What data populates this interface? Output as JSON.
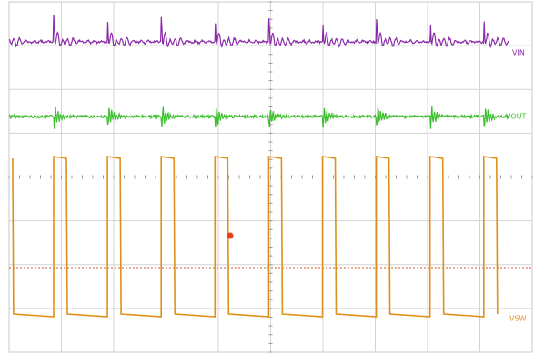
{
  "traces": [
    {
      "label": "VIN"
    },
    {
      "label": "VOUT"
    },
    {
      "label": "VSW"
    }
  ]
}
